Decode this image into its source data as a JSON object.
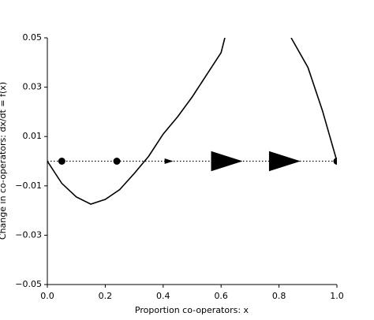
{
  "chart_data": {
    "type": "line",
    "xlabel": "Proportion co-operators: x",
    "ylabel": "Change in co-operators: dx/dt = f(x)",
    "x": [
      0,
      0.05,
      0.1,
      0.15,
      0.2,
      0.25,
      0.3,
      0.35,
      0.4,
      0.45,
      0.5,
      0.55,
      0.6,
      0.613,
      0.72,
      0.842,
      0.9,
      0.95,
      1.0
    ],
    "series": [
      {
        "color": "#000000",
        "values": [
          0,
          -0.009,
          -0.0145,
          -0.0174,
          -0.0155,
          -0.0115,
          -0.005,
          0.002,
          0.011,
          0.018,
          0.026,
          0.035,
          0.044,
          0.05,
          null,
          0.05,
          0.038,
          0.0205,
          0
        ]
      }
    ],
    "baseline": 0,
    "points": {
      "x": [
        0.05,
        0.24,
        1.0
      ],
      "y": [
        0,
        0,
        0
      ]
    },
    "arrows": {
      "x": [
        0.42,
        0.62,
        0.82
      ],
      "y": [
        0,
        0,
        0
      ]
    },
    "xlim": [
      0,
      1
    ],
    "ylim": [
      -0.05,
      0.05
    ],
    "xticks": [
      {
        "value": 0,
        "label": "0.0"
      },
      {
        "value": 0.2,
        "label": "0.2"
      },
      {
        "value": 0.4,
        "label": "0.4"
      },
      {
        "value": 0.6,
        "label": "0.6"
      },
      {
        "value": 0.8,
        "label": "0.8"
      },
      {
        "value": 1,
        "label": "1.0"
      }
    ],
    "yticks": [
      {
        "value": -0.05,
        "label": "−0.05"
      },
      {
        "value": -0.03,
        "label": "−0.03"
      },
      {
        "value": -0.01,
        "label": "−0.01"
      },
      {
        "value": 0.01,
        "label": "0.01"
      },
      {
        "value": 0.03,
        "label": "0.03"
      },
      {
        "value": 0.05,
        "label": "0.05"
      }
    ]
  }
}
